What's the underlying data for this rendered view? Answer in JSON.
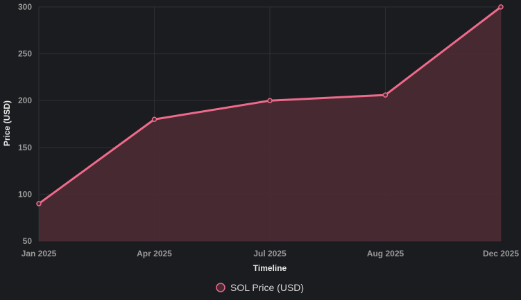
{
  "chart_data": {
    "type": "area",
    "categories": [
      "Jan 2025",
      "Apr 2025",
      "Jul 2025",
      "Aug 2025",
      "Dec 2025"
    ],
    "series": [
      {
        "name": "SOL Price (USD)",
        "values": [
          90,
          180,
          200,
          206,
          300
        ]
      }
    ],
    "xlabel": "Timeline",
    "ylabel": "Price (USD)",
    "ylim": [
      50,
      300
    ],
    "yticks": [
      50,
      100,
      150,
      200,
      250,
      300
    ],
    "grid": true,
    "legend": "bottom-center",
    "colors": {
      "line": "#f06a8c",
      "fill": "#4a2b33",
      "background": "#1b1c20",
      "grid": "#2e2f34",
      "tick": "#9a9a9a",
      "title": "#e8e8e8"
    }
  }
}
